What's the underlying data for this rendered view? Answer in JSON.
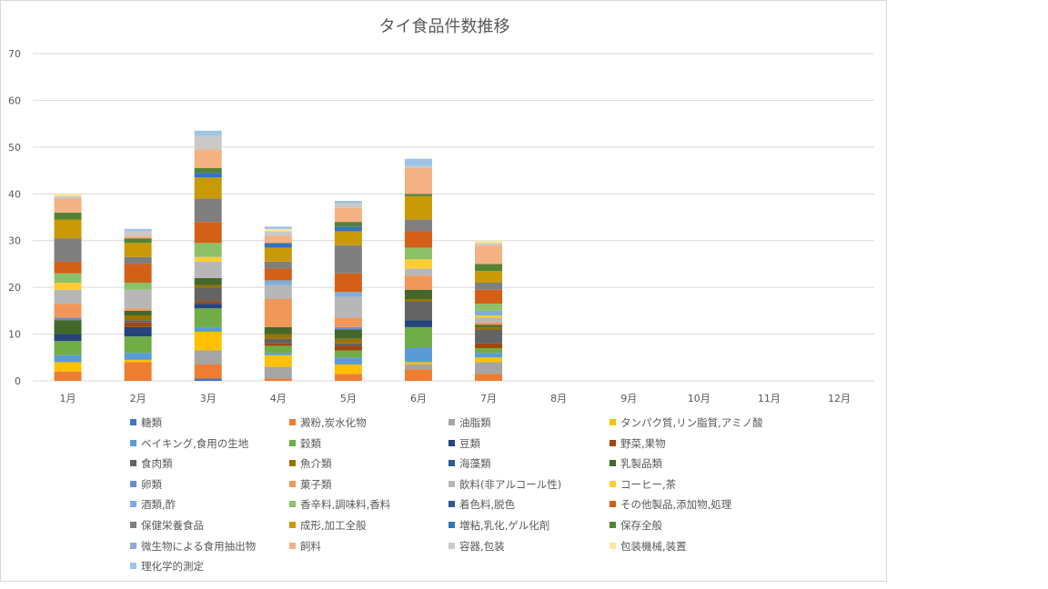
{
  "chart_data": {
    "type": "bar",
    "stacked": true,
    "title": "タイ食品件数推移",
    "xlabel": "",
    "ylabel": "",
    "ylim": [
      0,
      70
    ],
    "yticks": [
      0,
      10,
      20,
      30,
      40,
      50,
      60,
      70
    ],
    "grid": true,
    "legend_position": "bottom",
    "categories": [
      "1月",
      "2月",
      "3月",
      "4月",
      "5月",
      "6月",
      "7月",
      "8月",
      "9月",
      "10月",
      "11月",
      "12月"
    ],
    "series": [
      {
        "name": "糖類",
        "color": "#4472c4",
        "values": [
          0,
          0,
          0.5,
          0,
          0,
          0,
          0,
          0,
          0,
          0,
          0,
          0
        ]
      },
      {
        "name": "澱粉,炭水化物",
        "color": "#ed7d31",
        "values": [
          2,
          4,
          3,
          0.5,
          1.5,
          2.5,
          1.5,
          0,
          0,
          0,
          0,
          0
        ]
      },
      {
        "name": "油脂類",
        "color": "#a5a5a5",
        "values": [
          0,
          0,
          3,
          2.5,
          0,
          1,
          2.5,
          0,
          0,
          0,
          0,
          0
        ]
      },
      {
        "name": "タンパク質,リン脂質,アミノ酸",
        "color": "#ffc000",
        "values": [
          2,
          0.5,
          4,
          2.5,
          2,
          0.5,
          1,
          0,
          0,
          0,
          0,
          0
        ]
      },
      {
        "name": "ベイキング,食用の生地",
        "color": "#5b9bd5",
        "values": [
          1.5,
          1.5,
          1,
          0.5,
          1.5,
          3,
          1,
          0,
          0,
          0,
          0,
          0
        ]
      },
      {
        "name": "穀類",
        "color": "#70ad47",
        "values": [
          3,
          3.5,
          4,
          1.5,
          1.5,
          4.5,
          1,
          0,
          0,
          0,
          0,
          0
        ]
      },
      {
        "name": "豆類",
        "color": "#264478",
        "values": [
          1.5,
          2,
          1,
          0,
          0,
          1.5,
          0,
          0,
          0,
          0,
          0,
          0
        ]
      },
      {
        "name": "野菜,果物",
        "color": "#9e480e",
        "values": [
          0,
          1,
          0.5,
          0.5,
          1,
          0,
          1,
          0,
          0,
          0,
          0,
          0
        ]
      },
      {
        "name": "食肉類",
        "color": "#636363",
        "values": [
          0,
          0.5,
          3,
          1,
          0.5,
          4,
          3,
          0,
          0,
          0,
          0,
          0
        ]
      },
      {
        "name": "魚介類",
        "color": "#997300",
        "values": [
          0,
          1,
          0.5,
          1,
          1,
          0.5,
          0.5,
          0,
          0,
          0,
          0,
          0
        ]
      },
      {
        "name": "海藻類",
        "color": "#255e91",
        "values": [
          0,
          0,
          0,
          0,
          0,
          0,
          0,
          0,
          0,
          0,
          0,
          0
        ]
      },
      {
        "name": "乳製品類",
        "color": "#43682b",
        "values": [
          3,
          1,
          1.5,
          1.5,
          2,
          2,
          0.5,
          0,
          0,
          0,
          0,
          0
        ]
      },
      {
        "name": "卵類",
        "color": "#698ed0",
        "values": [
          0.5,
          0,
          0,
          0,
          0.5,
          0,
          0,
          0,
          0,
          0,
          0,
          0
        ]
      },
      {
        "name": "菓子類",
        "color": "#f1975a",
        "values": [
          3,
          0.5,
          0,
          6,
          2,
          3,
          0.5,
          0,
          0,
          0,
          0,
          0
        ]
      },
      {
        "name": "飲料(非アルコール性)",
        "color": "#b7b7b7",
        "values": [
          3,
          4,
          3.5,
          3,
          4.5,
          1.5,
          1,
          0,
          0,
          0,
          0,
          0
        ]
      },
      {
        "name": "コーヒー,茶",
        "color": "#ffcd33",
        "values": [
          1.5,
          0,
          1,
          0,
          0,
          2,
          0.5,
          0,
          0,
          0,
          0,
          0
        ]
      },
      {
        "name": "酒類,酢",
        "color": "#7cafdd",
        "values": [
          0,
          0,
          0,
          1,
          1,
          0,
          1,
          0,
          0,
          0,
          0,
          0
        ]
      },
      {
        "name": "香辛料,調味料,香料",
        "color": "#8cc168",
        "values": [
          2,
          1.5,
          3,
          0,
          0,
          2.5,
          1.5,
          0,
          0,
          0,
          0,
          0
        ]
      },
      {
        "name": "着色料,脱色",
        "color": "#2f5597",
        "values": [
          0,
          0,
          0,
          0,
          0,
          0,
          0,
          0,
          0,
          0,
          0,
          0
        ]
      },
      {
        "name": "その他製品,添加物,処理",
        "color": "#d45f16",
        "values": [
          2.5,
          4,
          4.5,
          2.5,
          4,
          3.5,
          3,
          0,
          0,
          0,
          0,
          0
        ]
      },
      {
        "name": "保健栄養食品",
        "color": "#7f7f7f",
        "values": [
          5,
          1.5,
          5,
          1.5,
          6,
          2.5,
          1.5,
          0,
          0,
          0,
          0,
          0
        ]
      },
      {
        "name": "成形,加工全般",
        "color": "#c99a06",
        "values": [
          4,
          3,
          4.5,
          3,
          3,
          5,
          2.5,
          0,
          0,
          0,
          0,
          0
        ]
      },
      {
        "name": "増粘,乳化,ゲル化剤",
        "color": "#3474ba",
        "values": [
          0,
          0,
          1,
          1,
          1,
          0,
          0,
          0,
          0,
          0,
          0,
          0
        ]
      },
      {
        "name": "保存全般",
        "color": "#548235",
        "values": [
          1.5,
          1,
          1,
          0,
          1,
          0.5,
          1.5,
          0,
          0,
          0,
          0,
          0
        ]
      },
      {
        "name": "微生物による食用抽出物",
        "color": "#8faadc",
        "values": [
          0,
          0,
          0,
          0,
          0,
          0,
          0,
          0,
          0,
          0,
          0,
          0
        ]
      },
      {
        "name": "飼料",
        "color": "#f4b183",
        "values": [
          3,
          0.5,
          4,
          1.5,
          3,
          5.5,
          4,
          0,
          0,
          0,
          0,
          0
        ]
      },
      {
        "name": "容器,包装",
        "color": "#c9c9c9",
        "values": [
          0.5,
          1,
          3,
          1,
          1,
          0.5,
          0.5,
          0,
          0,
          0,
          0,
          0
        ]
      },
      {
        "name": "包装機械,装置",
        "color": "#ffe699",
        "values": [
          0.5,
          0,
          0,
          0.5,
          0,
          0,
          0.5,
          0,
          0,
          0,
          0,
          0
        ]
      },
      {
        "name": "理化学的測定",
        "color": "#9dc3e6",
        "values": [
          0,
          0.5,
          1,
          0.5,
          0.5,
          1.5,
          0,
          0,
          0,
          0,
          0,
          0
        ]
      }
    ]
  }
}
